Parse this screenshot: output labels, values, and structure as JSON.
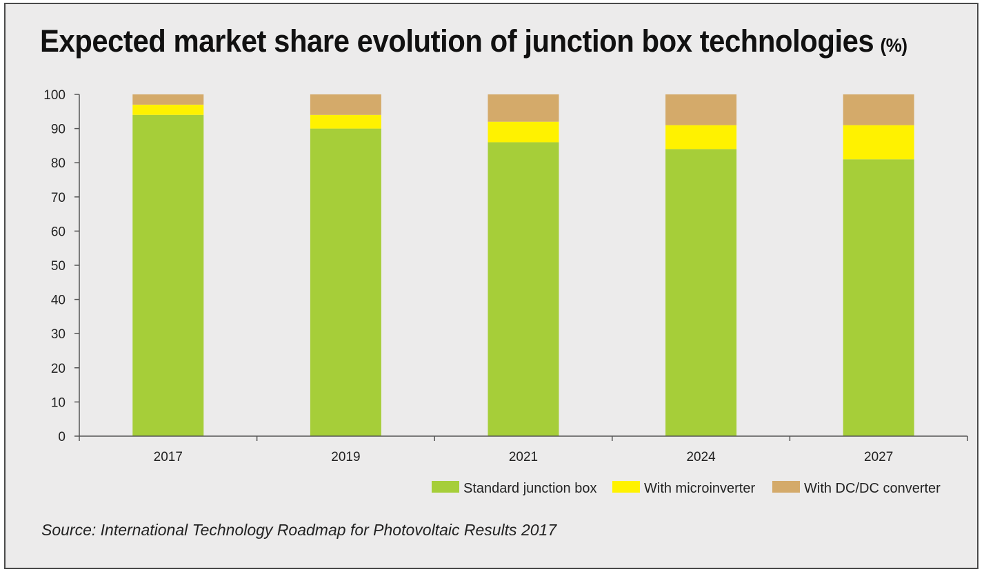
{
  "title": "Expected market share evolution of junction box technologies",
  "title_unit": "(%)",
  "source": "Source: International Technology Roadmap for Photovoltaic Results 2017",
  "chart_data": {
    "type": "bar",
    "stacked": true,
    "categories": [
      "2017",
      "2019",
      "2021",
      "2024",
      "2027"
    ],
    "series": [
      {
        "name": "Standard junction box",
        "values": [
          94,
          90,
          86,
          84,
          81
        ],
        "color": "#a6ce39"
      },
      {
        "name": "With microinverter",
        "values": [
          3,
          4,
          6,
          7,
          10
        ],
        "color": "#fff200"
      },
      {
        "name": "With DC/DC converter",
        "values": [
          3,
          6,
          8,
          9,
          9
        ],
        "color": "#d4aa6a"
      }
    ],
    "ylim": [
      0,
      100
    ],
    "yticks": [
      "0",
      "10",
      "20",
      "30",
      "40",
      "50",
      "60",
      "70",
      "80",
      "90",
      "100"
    ],
    "legend_position": "bottom-right",
    "grid": false
  }
}
